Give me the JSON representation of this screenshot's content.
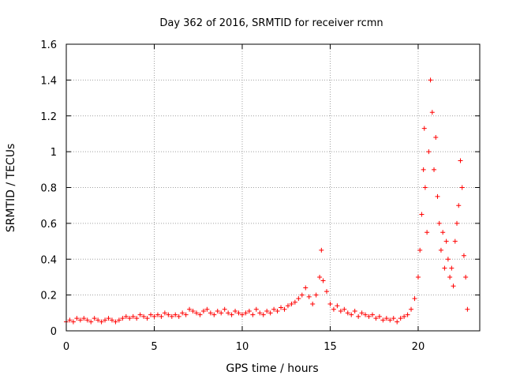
{
  "chart_data": {
    "type": "scatter",
    "title": "Day 362 of 2016, SRMTID for receiver rcmn",
    "xlabel": "GPS time / hours",
    "ylabel": "SRMTID / TECUs",
    "xlim": [
      0,
      23.5
    ],
    "ylim": [
      0,
      1.6
    ],
    "x_ticks": [
      "0",
      "5",
      "10",
      "15",
      "20"
    ],
    "x_tick_values": [
      0,
      5,
      10,
      15,
      20
    ],
    "y_ticks": [
      "0",
      "0.2",
      "0.4",
      "0.6",
      "0.8",
      "1",
      "1.2",
      "1.4",
      "1.6"
    ],
    "y_tick_values": [
      0,
      0.2,
      0.4,
      0.6,
      0.8,
      1.0,
      1.2,
      1.4,
      1.6
    ],
    "grid": true,
    "marker": "+",
    "marker_color": "#ff0000",
    "series": [
      {
        "name": "SRMTID",
        "points": [
          [
            0.0,
            0.05
          ],
          [
            0.2,
            0.06
          ],
          [
            0.4,
            0.05
          ],
          [
            0.6,
            0.07
          ],
          [
            0.8,
            0.06
          ],
          [
            1.0,
            0.07
          ],
          [
            1.2,
            0.06
          ],
          [
            1.4,
            0.05
          ],
          [
            1.6,
            0.07
          ],
          [
            1.8,
            0.06
          ],
          [
            2.0,
            0.05
          ],
          [
            2.2,
            0.06
          ],
          [
            2.4,
            0.07
          ],
          [
            2.6,
            0.06
          ],
          [
            2.8,
            0.05
          ],
          [
            3.0,
            0.06
          ],
          [
            3.2,
            0.07
          ],
          [
            3.4,
            0.08
          ],
          [
            3.6,
            0.07
          ],
          [
            3.8,
            0.08
          ],
          [
            4.0,
            0.07
          ],
          [
            4.2,
            0.09
          ],
          [
            4.4,
            0.08
          ],
          [
            4.6,
            0.07
          ],
          [
            4.8,
            0.09
          ],
          [
            5.0,
            0.08
          ],
          [
            5.2,
            0.09
          ],
          [
            5.4,
            0.08
          ],
          [
            5.6,
            0.1
          ],
          [
            5.8,
            0.09
          ],
          [
            6.0,
            0.08
          ],
          [
            6.2,
            0.09
          ],
          [
            6.4,
            0.08
          ],
          [
            6.6,
            0.1
          ],
          [
            6.8,
            0.09
          ],
          [
            7.0,
            0.12
          ],
          [
            7.2,
            0.11
          ],
          [
            7.4,
            0.1
          ],
          [
            7.6,
            0.09
          ],
          [
            7.8,
            0.11
          ],
          [
            8.0,
            0.12
          ],
          [
            8.2,
            0.1
          ],
          [
            8.4,
            0.09
          ],
          [
            8.6,
            0.11
          ],
          [
            8.8,
            0.1
          ],
          [
            9.0,
            0.12
          ],
          [
            9.2,
            0.1
          ],
          [
            9.4,
            0.09
          ],
          [
            9.6,
            0.11
          ],
          [
            9.8,
            0.1
          ],
          [
            10.0,
            0.09
          ],
          [
            10.2,
            0.1
          ],
          [
            10.4,
            0.11
          ],
          [
            10.6,
            0.09
          ],
          [
            10.8,
            0.12
          ],
          [
            11.0,
            0.1
          ],
          [
            11.2,
            0.09
          ],
          [
            11.4,
            0.11
          ],
          [
            11.6,
            0.1
          ],
          [
            11.8,
            0.12
          ],
          [
            12.0,
            0.11
          ],
          [
            12.2,
            0.13
          ],
          [
            12.4,
            0.12
          ],
          [
            12.6,
            0.14
          ],
          [
            12.8,
            0.15
          ],
          [
            13.0,
            0.16
          ],
          [
            13.2,
            0.18
          ],
          [
            13.4,
            0.2
          ],
          [
            13.6,
            0.24
          ],
          [
            13.8,
            0.19
          ],
          [
            14.0,
            0.15
          ],
          [
            14.2,
            0.2
          ],
          [
            14.4,
            0.3
          ],
          [
            14.5,
            0.45
          ],
          [
            14.6,
            0.28
          ],
          [
            14.8,
            0.22
          ],
          [
            15.0,
            0.15
          ],
          [
            15.2,
            0.12
          ],
          [
            15.4,
            0.14
          ],
          [
            15.6,
            0.11
          ],
          [
            15.8,
            0.12
          ],
          [
            16.0,
            0.1
          ],
          [
            16.2,
            0.09
          ],
          [
            16.4,
            0.11
          ],
          [
            16.6,
            0.08
          ],
          [
            16.8,
            0.1
          ],
          [
            17.0,
            0.09
          ],
          [
            17.2,
            0.08
          ],
          [
            17.4,
            0.09
          ],
          [
            17.6,
            0.07
          ],
          [
            17.8,
            0.08
          ],
          [
            18.0,
            0.06
          ],
          [
            18.2,
            0.07
          ],
          [
            18.4,
            0.06
          ],
          [
            18.6,
            0.07
          ],
          [
            18.8,
            0.05
          ],
          [
            19.0,
            0.07
          ],
          [
            19.2,
            0.08
          ],
          [
            19.4,
            0.09
          ],
          [
            19.6,
            0.12
          ],
          [
            19.8,
            0.18
          ],
          [
            20.0,
            0.3
          ],
          [
            20.1,
            0.45
          ],
          [
            20.2,
            0.65
          ],
          [
            20.3,
            0.9
          ],
          [
            20.35,
            1.13
          ],
          [
            20.4,
            0.8
          ],
          [
            20.5,
            0.55
          ],
          [
            20.6,
            1.0
          ],
          [
            20.7,
            1.4
          ],
          [
            20.8,
            1.22
          ],
          [
            20.9,
            0.9
          ],
          [
            21.0,
            1.08
          ],
          [
            21.1,
            0.75
          ],
          [
            21.2,
            0.6
          ],
          [
            21.3,
            0.45
          ],
          [
            21.4,
            0.55
          ],
          [
            21.5,
            0.35
          ],
          [
            21.6,
            0.5
          ],
          [
            21.7,
            0.4
          ],
          [
            21.8,
            0.3
          ],
          [
            21.9,
            0.35
          ],
          [
            22.0,
            0.25
          ],
          [
            22.1,
            0.5
          ],
          [
            22.2,
            0.6
          ],
          [
            22.3,
            0.7
          ],
          [
            22.4,
            0.95
          ],
          [
            22.5,
            0.8
          ],
          [
            22.6,
            0.42
          ],
          [
            22.7,
            0.3
          ],
          [
            22.8,
            0.12
          ]
        ]
      }
    ]
  }
}
